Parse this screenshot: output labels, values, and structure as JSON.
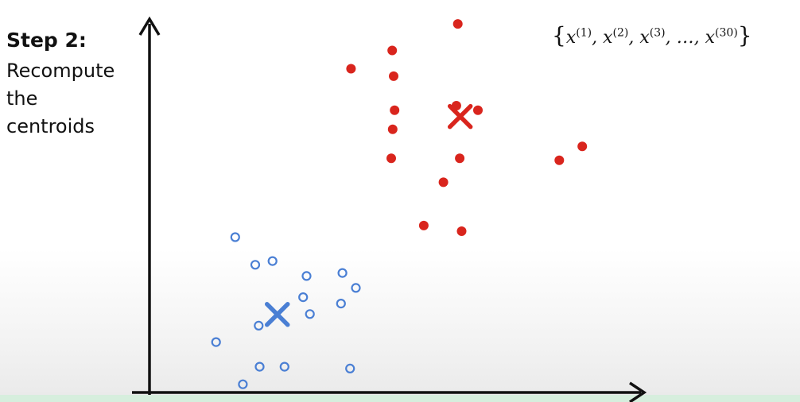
{
  "step": {
    "title": "Step 2:",
    "description_lines": [
      "Recompute",
      "the",
      "centroids"
    ]
  },
  "set_notation": {
    "open": "{",
    "base": "x",
    "superscripts": [
      "(1)",
      "(2)",
      "(3)",
      "(30)"
    ],
    "ellipsis": "…",
    "close": "}"
  },
  "chart_data": {
    "type": "scatter",
    "title": "",
    "xlabel": "",
    "ylabel": "",
    "xlim": [
      0,
      100
    ],
    "ylim": [
      0,
      100
    ],
    "series": [
      {
        "marker": "filled-circle",
        "color": "#d9251d",
        "points": [
          [
            64.4,
            98.7
          ],
          [
            50.7,
            91.6
          ],
          [
            42.1,
            86.7
          ],
          [
            51.0,
            84.7
          ],
          [
            51.2,
            75.6
          ],
          [
            64.1,
            76.8
          ],
          [
            68.6,
            75.6
          ],
          [
            50.8,
            70.5
          ],
          [
            50.5,
            62.7
          ],
          [
            64.8,
            62.7
          ],
          [
            90.4,
            65.9
          ],
          [
            85.6,
            62.2
          ],
          [
            61.4,
            56.3
          ],
          [
            57.3,
            44.7
          ],
          [
            65.2,
            43.2
          ]
        ]
      },
      {
        "marker": "open-circle",
        "color": "#4a7fd4",
        "points": [
          [
            17.9,
            41.6
          ],
          [
            22.1,
            34.2
          ],
          [
            25.7,
            35.2
          ],
          [
            32.8,
            31.2
          ],
          [
            40.3,
            32.0
          ],
          [
            43.1,
            28.0
          ],
          [
            32.1,
            25.5
          ],
          [
            40.0,
            23.8
          ],
          [
            33.5,
            21.0
          ],
          [
            22.8,
            17.9
          ],
          [
            13.9,
            13.5
          ],
          [
            23.0,
            6.9
          ],
          [
            28.2,
            6.9
          ],
          [
            41.9,
            6.4
          ],
          [
            19.5,
            2.2
          ]
        ]
      }
    ],
    "centroids": [
      {
        "color": "#d9251d",
        "x": 64.9,
        "y": 73.9
      },
      {
        "color": "#4a7fd4",
        "x": 26.7,
        "y": 20.9
      }
    ]
  }
}
